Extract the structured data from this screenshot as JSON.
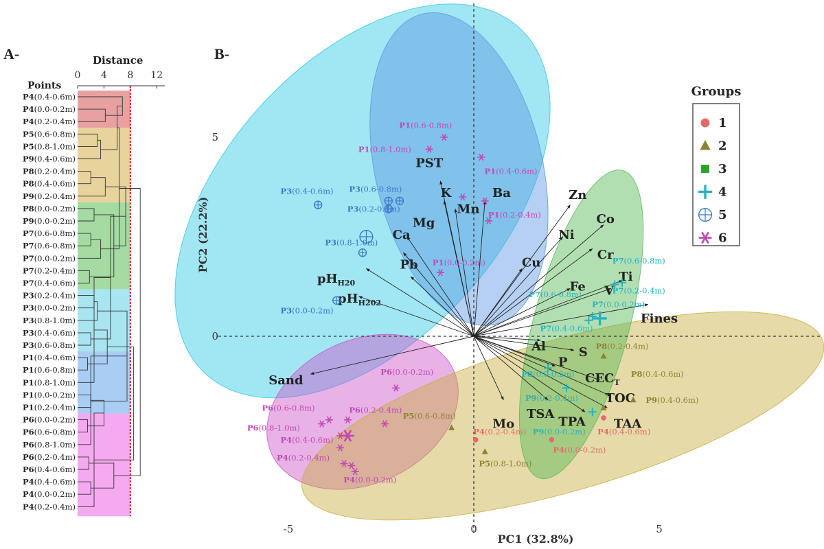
{
  "panels": {
    "a": "A-",
    "b": "B-"
  },
  "colors": {
    "g1": "#e46a6a",
    "g2": "#8f8232",
    "g3": "#2aa32a",
    "g4": "#26b3bf",
    "g5": "#3a78c9",
    "g6": "#c249b3",
    "dendro_bg": [
      "#e9a0a0",
      "#e8d39c",
      "#a3dba2",
      "#a8e5f1",
      "#a9cdf3",
      "#f5aaf0"
    ],
    "ellipse": [
      "#2ec7e4",
      "#5b97e3",
      "#cc55c7",
      "#c7ae3d",
      "#55b855"
    ]
  },
  "dendrogram": {
    "axis_title": "Distance",
    "points_title": "Points",
    "ticks": [
      "0",
      "4",
      "8",
      "12"
    ],
    "cut_value": 8,
    "leaves": [
      {
        "p": "P4",
        "d": "(0.4-0.6m)",
        "g": 0
      },
      {
        "p": "P4",
        "d": "(0.0-0.2m)",
        "g": 0
      },
      {
        "p": "P4",
        "d": "(0.2-0.4m)",
        "g": 0
      },
      {
        "p": "P5",
        "d": "(0.6-0.8m)",
        "g": 1
      },
      {
        "p": "P5",
        "d": "(0.8-1.0m)",
        "g": 1
      },
      {
        "p": "P9",
        "d": "(0.4-0.6m)",
        "g": 1
      },
      {
        "p": "P8",
        "d": "(0.2-0.4m)",
        "g": 1
      },
      {
        "p": "P8",
        "d": "(0.4-0.6m)",
        "g": 1
      },
      {
        "p": "P9",
        "d": "(0.2-0.4m)",
        "g": 1
      },
      {
        "p": "P8",
        "d": "(0.0-0.2m)",
        "g": 2
      },
      {
        "p": "P9",
        "d": "(0.0-0.2m)",
        "g": 2
      },
      {
        "p": "P7",
        "d": "(0.6-0.8m)",
        "g": 2
      },
      {
        "p": "P7",
        "d": "(0.6-0.8m)",
        "g": 2
      },
      {
        "p": "P7",
        "d": "(0.0-0.2m)",
        "g": 2
      },
      {
        "p": "P7",
        "d": "(0.2-0.4m)",
        "g": 2
      },
      {
        "p": "P7",
        "d": "(0.4-0.6m)",
        "g": 2
      },
      {
        "p": "P3",
        "d": "(0.2-0.4m)",
        "g": 3
      },
      {
        "p": "P3",
        "d": "(0.0-0.2m)",
        "g": 3
      },
      {
        "p": "P3",
        "d": "(0.8-1.0m)",
        "g": 3
      },
      {
        "p": "P3",
        "d": "(0.4-0.6m)",
        "g": 3
      },
      {
        "p": "P3",
        "d": "(0.6-0.8m)",
        "g": 3
      },
      {
        "p": "P1",
        "d": "(0.4-0.6m)",
        "g": 4
      },
      {
        "p": "P1",
        "d": "(0.6-0.8m)",
        "g": 4
      },
      {
        "p": "P1",
        "d": "(0.8-1.0m)",
        "g": 4
      },
      {
        "p": "P1",
        "d": "(0.0-0.2m)",
        "g": 4
      },
      {
        "p": "P1",
        "d": "(0.2-0.4m)",
        "g": 4
      },
      {
        "p": "P6",
        "d": "(0.0-0.2m)",
        "g": 5
      },
      {
        "p": "P6",
        "d": "(0.6-0.8m)",
        "g": 5
      },
      {
        "p": "P6",
        "d": "(0.8-1.0m)",
        "g": 5
      },
      {
        "p": "P6",
        "d": "(0.2-0.4m)",
        "g": 5
      },
      {
        "p": "P6",
        "d": "(0.4-0.6m)",
        "g": 5
      },
      {
        "p": "P4",
        "d": "(0.4-0.6m)",
        "g": 5
      },
      {
        "p": "P4",
        "d": "(0.0-0.2m)",
        "g": 5
      },
      {
        "p": "P4",
        "d": "(0.2-0.4m)",
        "g": 5
      }
    ],
    "merges": [
      {
        "l": 1,
        "r": 2,
        "h": 4.2
      },
      {
        "l": 0,
        "r": 34,
        "h": 6.8
      },
      {
        "l": 3,
        "r": 4,
        "h": 3.0
      },
      {
        "l": 6,
        "r": 7,
        "h": 2.0
      },
      {
        "l": 5,
        "r": 36,
        "h": 3.5
      },
      {
        "l": 37,
        "r": 8,
        "h": 4.2
      },
      {
        "l": 35,
        "r": 38,
        "h": 6.0
      },
      {
        "l": 9,
        "r": 10,
        "h": 2.5
      },
      {
        "l": 11,
        "r": 12,
        "h": 2.0
      },
      {
        "l": 14,
        "r": 15,
        "h": 1.8
      },
      {
        "l": 13,
        "r": 42,
        "h": 3.5
      },
      {
        "l": 41,
        "r": 43,
        "h": 5.5
      },
      {
        "l": 40,
        "r": 44,
        "h": 6.3
      },
      {
        "l": 39,
        "r": 45,
        "h": 7.3
      },
      {
        "l": 16,
        "r": 17,
        "h": 2.5
      },
      {
        "l": 19,
        "r": 20,
        "h": 2.0
      },
      {
        "l": 18,
        "r": 48,
        "h": 3.0
      },
      {
        "l": 47,
        "r": 49,
        "h": 5.0
      },
      {
        "l": 21,
        "r": 22,
        "h": 1.5
      },
      {
        "l": 51,
        "r": 23,
        "h": 2.5
      },
      {
        "l": 24,
        "r": 25,
        "h": 2.0
      },
      {
        "l": 52,
        "r": 53,
        "h": 4.5
      },
      {
        "l": 50,
        "r": 54,
        "h": 7.5
      },
      {
        "l": 26,
        "r": 27,
        "h": 1.5
      },
      {
        "l": 56,
        "r": 28,
        "h": 2.0
      },
      {
        "l": 29,
        "r": 30,
        "h": 1.7
      },
      {
        "l": 57,
        "r": 58,
        "h": 4.0
      },
      {
        "l": 31,
        "r": 32,
        "h": 2.0
      },
      {
        "l": 60,
        "r": 33,
        "h": 2.5
      },
      {
        "l": 59,
        "r": 61,
        "h": 5.5
      },
      {
        "l": 55,
        "r": 62,
        "h": 8.5
      },
      {
        "l": 46,
        "r": 63,
        "h": 9.5
      }
    ]
  },
  "chart_data": {
    "type": "scatter",
    "xlabel": "PC1 (32.8%)",
    "ylabel": "PC2 (22.2%)",
    "x_ticks": [
      "-5",
      "0",
      "5"
    ],
    "y_ticks": [
      "5",
      "0"
    ],
    "legend_title": "Groups",
    "legend_placement": "top-right",
    "legend": [
      {
        "label": "1",
        "symbol": "circle",
        "color": "#e46a6a"
      },
      {
        "label": "2",
        "symbol": "triangle",
        "color": "#8f8232"
      },
      {
        "label": "3",
        "symbol": "square",
        "color": "#2aa32a"
      },
      {
        "label": "4",
        "symbol": "plus",
        "color": "#26b3bf"
      },
      {
        "label": "5",
        "symbol": "circleplus",
        "color": "#3a78c9"
      },
      {
        "label": "6",
        "symbol": "star",
        "color": "#c249b3"
      }
    ],
    "ellipses": [
      {
        "cx": -3.0,
        "cy": 3.4,
        "rx": 6.3,
        "ry": 3.5,
        "rot": -48,
        "ci": 0
      },
      {
        "cx": -0.4,
        "cy": 4.2,
        "rx": 4.3,
        "ry": 2.1,
        "rot": -103,
        "ci": 1
      },
      {
        "cx": -3.0,
        "cy": -1.9,
        "rx": 2.7,
        "ry": 1.8,
        "rot": -25,
        "ci": 2
      },
      {
        "cx": 2.4,
        "cy": -2.0,
        "rx": 7.3,
        "ry": 1.9,
        "rot": -16,
        "ci": 3
      },
      {
        "cx": 2.9,
        "cy": 0.3,
        "rx": 4.3,
        "ry": 1.2,
        "rot": -75,
        "ci": 4
      }
    ],
    "vectors": [
      {
        "label": "Sand",
        "x": -4.4,
        "y": -0.95,
        "lx": -4.6,
        "ly": -1.1,
        "anchor": "end"
      },
      {
        "label": "PST",
        "x": -0.9,
        "y": 3.9,
        "lx": -1.2,
        "ly": 4.35,
        "anchor": "middle"
      },
      {
        "label": "K",
        "x": -0.8,
        "y": 3.4,
        "lx": -0.75,
        "ly": 3.6,
        "anchor": "middle"
      },
      {
        "label": "Mn",
        "x": -0.5,
        "y": 3.2,
        "lx": -0.15,
        "ly": 3.2,
        "anchor": "middle"
      },
      {
        "label": "Ba",
        "x": 0.3,
        "y": 3.4,
        "lx": 0.75,
        "ly": 3.6,
        "anchor": "middle"
      },
      {
        "label": "Mg",
        "x": -1.8,
        "y": 2.5,
        "lx": -1.35,
        "ly": 2.85,
        "anchor": "middle"
      },
      {
        "label": "Ca",
        "x": -1.9,
        "y": 2.1,
        "lx": -1.95,
        "ly": 2.55,
        "anchor": "middle"
      },
      {
        "label": "Pb",
        "x": -1.7,
        "y": 1.5,
        "lx": -1.75,
        "ly": 1.8,
        "anchor": "middle"
      },
      {
        "label": "pHH20",
        "x": -2.9,
        "y": 1.7,
        "lx": -3.2,
        "ly": 1.45,
        "anchor": "end",
        "main": "pH",
        "sub": "H20"
      },
      {
        "label": "pHH202",
        "x": -3.1,
        "y": 1.0,
        "lx": -2.5,
        "ly": 0.95,
        "anchor": "end",
        "main": "pH",
        "sub": "H202"
      },
      {
        "label": "Cu",
        "x": 1.3,
        "y": 1.7,
        "lx": 1.55,
        "ly": 1.85,
        "anchor": "middle"
      },
      {
        "label": "Zn",
        "x": 2.6,
        "y": 3.3,
        "lx": 2.8,
        "ly": 3.55,
        "anchor": "middle"
      },
      {
        "label": "Ni",
        "x": 2.4,
        "y": 2.5,
        "lx": 2.5,
        "ly": 2.55,
        "anchor": "middle"
      },
      {
        "label": "Co",
        "x": 3.5,
        "y": 2.8,
        "lx": 3.55,
        "ly": 2.95,
        "anchor": "middle"
      },
      {
        "label": "Cr",
        "x": 3.2,
        "y": 2.2,
        "lx": 3.55,
        "ly": 2.05,
        "anchor": "middle"
      },
      {
        "label": "Fe",
        "x": 2.6,
        "y": 1.2,
        "lx": 2.8,
        "ly": 1.25,
        "anchor": "middle"
      },
      {
        "label": "Ti",
        "x": 4.0,
        "y": 1.4,
        "lx": 4.1,
        "ly": 1.5,
        "anchor": "middle"
      },
      {
        "label": "V",
        "x": 3.7,
        "y": 1.2,
        "lx": 3.65,
        "ly": 1.15,
        "anchor": "middle"
      },
      {
        "label": "Fines",
        "x": 4.7,
        "y": 0.8,
        "lx": 5.0,
        "ly": 0.45,
        "anchor": "middle"
      },
      {
        "label": "Al",
        "x": 1.8,
        "y": -0.1,
        "lx": 1.75,
        "ly": -0.25,
        "anchor": "middle"
      },
      {
        "label": "S",
        "x": 2.7,
        "y": -0.35,
        "lx": 2.95,
        "ly": -0.4,
        "anchor": "middle"
      },
      {
        "label": "P",
        "x": 2.2,
        "y": -0.75,
        "lx": 2.4,
        "ly": -0.65,
        "anchor": "middle"
      },
      {
        "label": "CECT",
        "x": 3.4,
        "y": -1.1,
        "lx": 3.0,
        "ly": -1.05,
        "anchor": "start",
        "main": "CEC",
        "sub": "T"
      },
      {
        "label": "TOC",
        "x": 3.7,
        "y": -1.5,
        "lx": 3.95,
        "ly": -1.55,
        "anchor": "middle"
      },
      {
        "label": "TSA",
        "x": 2.0,
        "y": -1.6,
        "lx": 1.8,
        "ly": -1.95,
        "anchor": "middle"
      },
      {
        "label": "TPA",
        "x": 3.0,
        "y": -1.9,
        "lx": 2.65,
        "ly": -2.15,
        "anchor": "middle"
      },
      {
        "label": "TAA",
        "x": 3.6,
        "y": -1.8,
        "lx": 4.15,
        "ly": -2.2,
        "anchor": "middle"
      },
      {
        "label": "Mo",
        "x": 0.8,
        "y": -1.6,
        "lx": 0.8,
        "ly": -2.2,
        "anchor": "middle"
      }
    ],
    "points": [
      {
        "g": 5,
        "x": -0.8,
        "y": 5.0,
        "label": "P1 (0.6-0.8m)",
        "lx": -1.3,
        "ly": 5.3,
        "anchor": "middle"
      },
      {
        "g": 5,
        "x": -1.2,
        "y": 4.7,
        "label": "P1 (0.8-1.0m)",
        "lx": -2.4,
        "ly": 4.7,
        "anchor": "middle"
      },
      {
        "g": 5,
        "x": 0.2,
        "y": 4.5,
        "label": "P1 (0.4-0.6m)",
        "lx": 1.0,
        "ly": 4.15,
        "anchor": "middle"
      },
      {
        "g": 5,
        "x": -0.3,
        "y": 3.5,
        "label": "",
        "lx": 0,
        "ly": 0,
        "anchor": "middle"
      },
      {
        "g": 5,
        "x": 0.3,
        "y": 3.4,
        "label": "",
        "lx": 0,
        "ly": 0,
        "anchor": "middle"
      },
      {
        "g": 5,
        "x": 0.4,
        "y": 2.9,
        "label": "P1 (0.2-0.4m)",
        "lx": 1.1,
        "ly": 3.05,
        "anchor": "middle"
      },
      {
        "g": 5,
        "x": -0.9,
        "y": 1.6,
        "label": "P1 (0.0-0.2m)",
        "lx": -0.4,
        "ly": 1.85,
        "anchor": "middle"
      },
      {
        "g": 4,
        "x": -4.2,
        "y": 3.3,
        "label": "P3 (0.4-0.6m)",
        "lx": -4.5,
        "ly": 3.65,
        "anchor": "middle"
      },
      {
        "g": 4,
        "x": -2.3,
        "y": 3.4,
        "label": "P3 (0.6-0.8m)",
        "lx": -2.65,
        "ly": 3.7,
        "anchor": "middle"
      },
      {
        "g": 4,
        "x": -2.0,
        "y": 3.4,
        "label": "",
        "lx": 0,
        "ly": 0,
        "anchor": "middle"
      },
      {
        "g": 4,
        "x": -2.3,
        "y": 3.2,
        "label": "P3 (0.2-0.4m)",
        "lx": -2.7,
        "ly": 3.2,
        "anchor": "middle"
      },
      {
        "g": 4,
        "x": -2.9,
        "y": 2.5,
        "label": "",
        "lx": 0,
        "ly": 0,
        "anchor": "middle",
        "big": true
      },
      {
        "g": 4,
        "x": -3.0,
        "y": 2.1,
        "label": "P3 (0.8-1.0m)",
        "lx": -3.3,
        "ly": 2.35,
        "anchor": "middle"
      },
      {
        "g": 4,
        "x": -3.7,
        "y": 0.9,
        "label": "P3 (0.0-0.2m)",
        "lx": -4.5,
        "ly": 0.65,
        "anchor": "middle"
      },
      {
        "g": 3,
        "x": 3.8,
        "y": 1.3,
        "label": "P7 (0.6-0.8m)",
        "lx": 4.45,
        "ly": 1.9,
        "anchor": "middle"
      },
      {
        "g": 3,
        "x": 4.0,
        "y": 1.35,
        "label": "P7 (0.2-0.4m)",
        "lx": 4.45,
        "ly": 1.15,
        "anchor": "middle"
      },
      {
        "g": 3,
        "x": 3.2,
        "y": 0.5,
        "label": "P7 (0.6-0.8m)",
        "lx": 2.2,
        "ly": 1.05,
        "anchor": "middle"
      },
      {
        "g": 3,
        "x": 3.1,
        "y": 0.4,
        "label": "P7 (0.0-0.2m)",
        "lx": 3.9,
        "ly": 0.8,
        "anchor": "middle"
      },
      {
        "g": 3,
        "x": 3.4,
        "y": 0.45,
        "label": "P7 (0.4-0.6m)",
        "lx": 2.5,
        "ly": 0.2,
        "anchor": "middle",
        "big": true
      },
      {
        "g": 3,
        "x": 2.0,
        "y": -0.8,
        "label": "P8 (0.0-0.2m)",
        "lx": 2.0,
        "ly": -0.95,
        "anchor": "middle"
      },
      {
        "g": 3,
        "x": 2.5,
        "y": -1.3,
        "label": "P9 (0.2-0.4m)",
        "lx": 2.1,
        "ly": -1.55,
        "anchor": "middle"
      },
      {
        "g": 3,
        "x": 3.2,
        "y": -1.9,
        "label": "P9 (0.0-0.2m)",
        "lx": 2.3,
        "ly": -2.4,
        "anchor": "middle"
      },
      {
        "g": 1,
        "x": 3.5,
        "y": -0.5,
        "label": "P8 (0.2-0.4m)",
        "lx": 4.0,
        "ly": -0.25,
        "anchor": "middle"
      },
      {
        "g": 1,
        "x": 4.3,
        "y": -1.6,
        "label": "P8 (0.4-0.6m)",
        "lx": 4.95,
        "ly": -0.95,
        "anchor": "middle"
      },
      {
        "g": 1,
        "x": 3.5,
        "y": -1.8,
        "label": "P9 (0.4-0.6m)",
        "lx": 5.35,
        "ly": -1.6,
        "anchor": "middle"
      },
      {
        "g": 1,
        "x": -0.6,
        "y": -2.3,
        "label": "P5 (0.6-0.8m)",
        "lx": -1.2,
        "ly": -2.0,
        "anchor": "middle"
      },
      {
        "g": 1,
        "x": 0.3,
        "y": -2.9,
        "label": "P5 (0.8-1.0m)",
        "lx": 0.85,
        "ly": -3.2,
        "anchor": "middle"
      },
      {
        "g": 0,
        "x": 0.05,
        "y": -2.6,
        "label": "P4 (0.2-0.4m)",
        "lx": 0.7,
        "ly": -2.4,
        "anchor": "middle"
      },
      {
        "g": 0,
        "x": 2.1,
        "y": -2.6,
        "label": "P4 (0.0-0.2m)",
        "lx": 2.85,
        "ly": -2.85,
        "anchor": "middle"
      },
      {
        "g": 0,
        "x": 3.5,
        "y": -2.05,
        "label": "P4 (0.4-0.6m)",
        "lx": 4.05,
        "ly": -2.4,
        "anchor": "middle"
      },
      {
        "g": 5,
        "x": -2.1,
        "y": -1.3,
        "label": "P6 (0.0-0.2m)",
        "lx": -1.8,
        "ly": -0.9,
        "anchor": "middle"
      },
      {
        "g": 5,
        "x": -3.9,
        "y": -2.1,
        "label": "P6 (0.6-0.8m)",
        "lx": -5.0,
        "ly": -1.8,
        "anchor": "middle"
      },
      {
        "g": 5,
        "x": -3.4,
        "y": -2.1,
        "label": "P6 (0.2-0.4m)",
        "lx": -2.65,
        "ly": -1.85,
        "anchor": "middle"
      },
      {
        "g": 5,
        "x": -2.4,
        "y": -2.2,
        "label": "",
        "lx": 0,
        "ly": 0,
        "anchor": "middle"
      },
      {
        "g": 5,
        "x": -4.1,
        "y": -2.2,
        "label": "P6 (0.8-1.0m)",
        "lx": -5.4,
        "ly": -2.3,
        "anchor": "middle"
      },
      {
        "g": 5,
        "x": -3.4,
        "y": -2.5,
        "label": "",
        "lx": 0,
        "ly": 0,
        "anchor": "middle",
        "big": true
      },
      {
        "g": 5,
        "x": -3.6,
        "y": -2.5,
        "label": "P4 (0.4-0.6m)",
        "lx": -4.5,
        "ly": -2.6,
        "anchor": "middle"
      },
      {
        "g": 5,
        "x": -3.6,
        "y": -2.8,
        "label": "",
        "lx": 0,
        "ly": 0,
        "anchor": "middle"
      },
      {
        "g": 5,
        "x": -3.5,
        "y": -3.2,
        "label": "P4 (0.2-0.4m)",
        "lx": -4.6,
        "ly": -3.05,
        "anchor": "middle"
      },
      {
        "g": 5,
        "x": -3.3,
        "y": -3.25,
        "label": "",
        "lx": 0,
        "ly": 0,
        "anchor": "middle"
      },
      {
        "g": 5,
        "x": -3.2,
        "y": -3.4,
        "label": "P4 (0.0-0.2m)",
        "lx": -2.8,
        "ly": -3.6,
        "anchor": "middle"
      }
    ]
  }
}
